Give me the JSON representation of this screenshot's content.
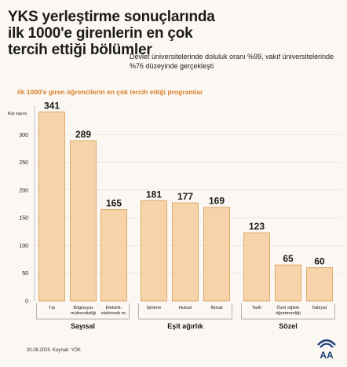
{
  "header": {
    "title": "YKS yerleştirme sonuçlarında ilk 1000'e girenlerin en çok tercih ettiği bölümler",
    "subtitle": "Devlet üniversitelerinde doluluk oranı %99, vakıf üniversitelerinde %76 düzeyinde gerçekleşti"
  },
  "footer": {
    "date": "30.08.2025",
    "source": "Kaynak: YÖK"
  },
  "logo": {
    "icon": "aa-logo-icon",
    "text": "AA"
  },
  "colors": {
    "bar_fill": "#f6d3a9",
    "bar_stroke": "#d79b57",
    "accent": "#d6802c",
    "grid": "#e3dbd2"
  },
  "chart_data": {
    "type": "bar",
    "title": "ilk 1000'e giren öğrencilerin en çok tercih ettiği programlar",
    "ylabel": "Kişi sayısı",
    "ylim": [
      0,
      350
    ],
    "yticks": [
      0,
      50,
      100,
      150,
      200,
      250,
      300
    ],
    "grid": true,
    "categories": [
      "Tıp",
      "Bilgisayar mühendisliği",
      "Elektrik-elektronik m.",
      "İşletme",
      "Hukuk",
      "İktisat",
      "Tarih",
      "Özel eğitim öğretmenliği",
      "İlahiyat"
    ],
    "values": [
      341,
      289,
      165,
      181,
      177,
      169,
      123,
      65,
      60
    ],
    "groups": [
      {
        "name": "Sayısal",
        "start": 0,
        "end": 2
      },
      {
        "name": "Eşit ağırlık",
        "start": 3,
        "end": 5
      },
      {
        "name": "Sözel",
        "start": 6,
        "end": 8
      }
    ]
  }
}
